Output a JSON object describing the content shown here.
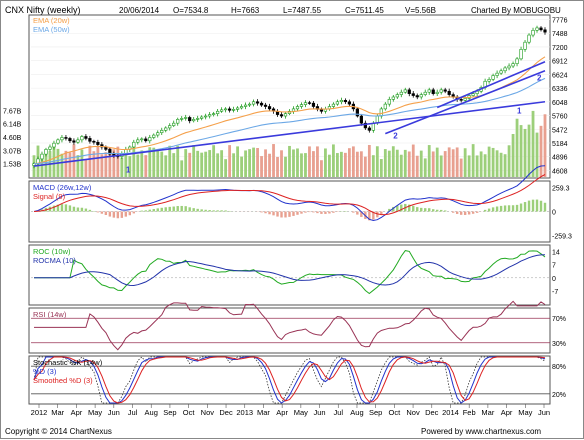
{
  "header": {
    "title": "CNX Nifty (weekly)",
    "date": "20/06/2014",
    "open": "O=7534.8",
    "high": "H=7663",
    "low": "L=7487.55",
    "close": "C=7511.45",
    "volume": "V=5.56B",
    "credit": "Charted By MOBUGOBU"
  },
  "footer": {
    "copyright": "Copyright © 2014 ChartNexus",
    "powered": "Powered by www.chartnexus.com"
  },
  "colors": {
    "ema20": "#f5a04a",
    "ema50": "#6ca8e6",
    "trendline": "#3a3adc",
    "candle_up": "#1a9a1a",
    "candle_down": "#000000",
    "volume_up": "#9ccf7a",
    "volume_down": "#e8a090",
    "macd_line": "#2233cc",
    "signal_line": "#dd2222",
    "roc_line": "#22aa22",
    "rocma_line": "#2233aa",
    "rsi_line": "#993355",
    "rsi_band": "#993355",
    "stoch_k": "#2233cc",
    "stoch_d": "#dd2222"
  },
  "chart_data": [
    {
      "type": "candlestick",
      "title": "CNX Nifty (weekly)",
      "legend": [
        "EMA (20w)",
        "EMA (50w)"
      ],
      "y_ticks": [
        "7776",
        "7488",
        "7200",
        "6912",
        "6624",
        "6336",
        "6048",
        "5760",
        "5472",
        "5184",
        "4896",
        "4608"
      ],
      "y_range": [
        4470,
        7850
      ],
      "x_ticks": [
        "2012",
        "Mar",
        "Apr",
        "May",
        "Jun",
        "Jul",
        "Aug",
        "Sep",
        "Oct",
        "Nov",
        "Dec",
        "2013",
        "Mar",
        "Apr",
        "May",
        "Jun",
        "Jul",
        "Aug",
        "Sep",
        "Oct",
        "Nov",
        "Dec",
        "2014",
        "Feb",
        "Mar",
        "Apr",
        "May",
        "Jun"
      ],
      "close": [
        4750,
        4850,
        4950,
        5050,
        5100,
        5180,
        5250,
        5300,
        5280,
        5230,
        5200,
        5250,
        5320,
        5280,
        5220,
        5200,
        5150,
        5100,
        5050,
        4950,
        4920,
        4900,
        4960,
        5050,
        5100,
        5200,
        5250,
        5270,
        5230,
        5300,
        5350,
        5400,
        5450,
        5500,
        5550,
        5600,
        5680,
        5700,
        5720,
        5650,
        5680,
        5700,
        5730,
        5750,
        5780,
        5800,
        5850,
        5880,
        5900,
        5870,
        5890,
        5920,
        5950,
        5980,
        6000,
        6050,
        6020,
        5980,
        5950,
        5900,
        5850,
        5780,
        5750,
        5800,
        5850,
        5900,
        5950,
        5990,
        6030,
        6020,
        5950,
        5890,
        5850,
        5900,
        5950,
        6000,
        6050,
        6080,
        6050,
        6000,
        5900,
        5750,
        5600,
        5500,
        5450,
        5600,
        5750,
        5900,
        6000,
        6100,
        6150,
        6200,
        6250,
        6300,
        6220,
        6180,
        6150,
        6200,
        6250,
        6300,
        6220,
        6250,
        6300,
        6270,
        6200,
        6150,
        6100,
        6080,
        6120,
        6180,
        6220,
        6270,
        6350,
        6480,
        6520,
        6600,
        6650,
        6700,
        6760,
        6800,
        6850,
        6950,
        7150,
        7300,
        7450,
        7550,
        7600,
        7560,
        7511
      ],
      "volume_unit": "B",
      "volume_ticks": [
        "7.67B",
        "6.14B",
        "4.60B",
        "3.07B",
        "1.53B"
      ],
      "trendline_labels": [
        "1",
        "1",
        "2",
        "2"
      ]
    },
    {
      "type": "line",
      "series": [
        {
          "name": "MACD (26w,12w)"
        },
        {
          "name": "Signal (9)"
        }
      ],
      "y_ticks": [
        "259.3",
        "0",
        "-259.3"
      ],
      "y_range": [
        -320,
        320
      ]
    },
    {
      "type": "line",
      "series": [
        {
          "name": "ROC (10w)"
        },
        {
          "name": "ROCMA (10)"
        }
      ],
      "y_ticks": [
        "14",
        "7",
        "0",
        "-7"
      ],
      "y_range": [
        -14,
        17
      ]
    },
    {
      "type": "line",
      "series": [
        {
          "name": "RSI (14w)"
        }
      ],
      "y_ticks": [
        "70%",
        "30%"
      ],
      "y_range": [
        15,
        85
      ]
    },
    {
      "type": "line",
      "series": [
        {
          "name": "Stochastic %K (14w)"
        },
        {
          "name": "%D (3)"
        },
        {
          "name": "Smoothed %D (3)"
        }
      ],
      "y_ticks": [
        "80%",
        "20%"
      ],
      "y_range": [
        0,
        100
      ]
    }
  ]
}
